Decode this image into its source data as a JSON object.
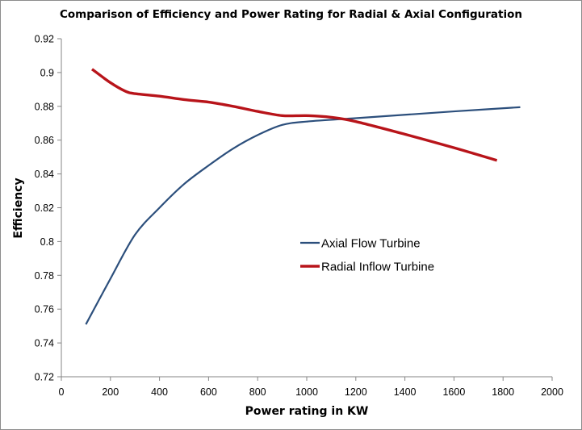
{
  "chart_data": {
    "type": "line",
    "title": "Comparison of Efficiency and Power Rating for Radial & Axial Configuration",
    "xlabel": "Power rating in KW",
    "ylabel": "Efficiency",
    "xlim": [
      0,
      2000
    ],
    "ylim": [
      0.72,
      0.92
    ],
    "x_ticks": [
      0,
      200,
      400,
      600,
      800,
      1000,
      1200,
      1400,
      1600,
      1800,
      2000
    ],
    "y_ticks": [
      "0.72",
      "0.74",
      "0.76",
      "0.78",
      "0.8",
      "0.82",
      "0.84",
      "0.86",
      "0.88",
      "0.9",
      "0.92"
    ],
    "grid": false,
    "legend_position": "center-right",
    "series": [
      {
        "name": "Axial Flow Turbine",
        "color": "#2c4f7c",
        "x": [
          100,
          200,
          300,
          400,
          500,
          600,
          700,
          800,
          900,
          1000,
          1200,
          1400,
          1600,
          1870
        ],
        "y": [
          0.751,
          0.778,
          0.804,
          0.82,
          0.834,
          0.845,
          0.855,
          0.863,
          0.869,
          0.871,
          0.873,
          0.875,
          0.877,
          0.8795
        ]
      },
      {
        "name": "Radial Inflow Turbine",
        "color": "#b8141a",
        "x": [
          125,
          200,
          260,
          300,
          400,
          500,
          600,
          700,
          800,
          900,
          1000,
          1100,
          1200,
          1400,
          1600,
          1775
        ],
        "y": [
          0.902,
          0.894,
          0.889,
          0.8875,
          0.886,
          0.884,
          0.8825,
          0.88,
          0.877,
          0.8745,
          0.8745,
          0.8735,
          0.871,
          0.8635,
          0.8555,
          0.848
        ]
      }
    ]
  }
}
